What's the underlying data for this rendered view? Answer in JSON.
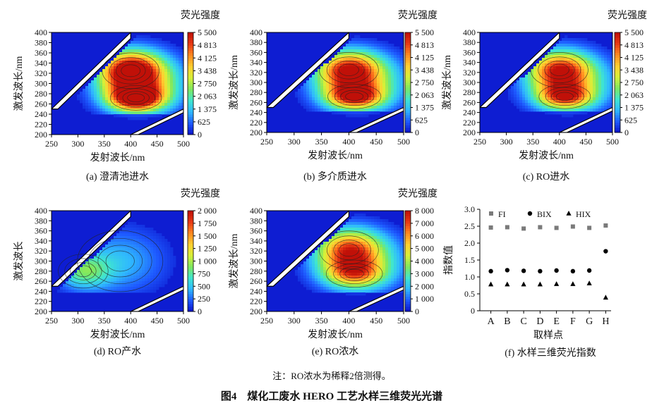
{
  "figure": {
    "title": "图4　煤化工废水 HERO 工艺水样三维荧光光谱",
    "note": "注：RO浓水为稀释2倍测得。"
  },
  "colors": {
    "colormap": [
      "#0a10c8",
      "#1e5aff",
      "#2fb8ff",
      "#3fe6d0",
      "#7ee860",
      "#d6f038",
      "#ffd030",
      "#ff8a20",
      "#e83a14",
      "#c01008"
    ]
  },
  "chart_data": [
    {
      "id": "a",
      "type": "heatmap",
      "caption": "(a) 澄清池进水",
      "xlabel": "发射波长/nm",
      "ylabel": "激发波长/nm",
      "colorbar_title": "荧光强度",
      "x_ticks": [
        "250",
        "300",
        "350",
        "400",
        "450",
        "500"
      ],
      "y_ticks": [
        "200",
        "220",
        "240",
        "260",
        "280",
        "300",
        "320",
        "340",
        "360",
        "380",
        "400"
      ],
      "colorbar_ticks": [
        "0",
        "625",
        "1 375",
        "2 063",
        "2 750",
        "3 438",
        "4 125",
        "4 813",
        "5 500"
      ],
      "xlim": [
        250,
        500
      ],
      "ylim": [
        200,
        400
      ],
      "zlim": [
        0,
        5500
      ],
      "peaks": [
        {
          "em": 400,
          "ex": 325,
          "intensity": 4900,
          "sigma_em": 40,
          "sigma_ex": 26
        },
        {
          "em": 410,
          "ex": 272,
          "intensity": 5100,
          "sigma_em": 36,
          "sigma_ex": 18
        },
        {
          "em": 420,
          "ex": 300,
          "intensity": 3000,
          "sigma_em": 55,
          "sigma_ex": 38
        }
      ]
    },
    {
      "id": "b",
      "type": "heatmap",
      "caption": "(b) 多介质进水",
      "xlabel": "发射波长/nm",
      "ylabel": "激发波长/nm",
      "colorbar_title": "荧光强度",
      "x_ticks": [
        "250",
        "300",
        "350",
        "400",
        "450",
        "500"
      ],
      "y_ticks": [
        "200",
        "220",
        "240",
        "260",
        "280",
        "300",
        "320",
        "340",
        "360",
        "380",
        "400"
      ],
      "colorbar_ticks": [
        "0",
        "625",
        "1 375",
        "2 063",
        "2 750",
        "3 438",
        "4 125",
        "4 813",
        "5 500"
      ],
      "xlim": [
        250,
        500
      ],
      "ylim": [
        200,
        400
      ],
      "zlim": [
        0,
        5500
      ],
      "peaks": [
        {
          "em": 400,
          "ex": 325,
          "intensity": 4100,
          "sigma_em": 40,
          "sigma_ex": 26
        },
        {
          "em": 410,
          "ex": 272,
          "intensity": 4200,
          "sigma_em": 36,
          "sigma_ex": 18
        },
        {
          "em": 420,
          "ex": 300,
          "intensity": 2600,
          "sigma_em": 55,
          "sigma_ex": 38
        }
      ]
    },
    {
      "id": "c",
      "type": "heatmap",
      "caption": "(c) RO进水",
      "xlabel": "发射波长/nm",
      "ylabel": "激发波长/nm",
      "colorbar_title": "荧光强度",
      "x_ticks": [
        "250",
        "300",
        "350",
        "400",
        "450",
        "500"
      ],
      "y_ticks": [
        "200",
        "220",
        "240",
        "260",
        "280",
        "300",
        "320",
        "340",
        "360",
        "380",
        "400"
      ],
      "colorbar_ticks": [
        "0",
        "625",
        "1 375",
        "2 063",
        "2 750",
        "3 438",
        "4 125",
        "4 813",
        "5 500"
      ],
      "xlim": [
        250,
        500
      ],
      "ylim": [
        200,
        400
      ],
      "zlim": [
        0,
        5500
      ],
      "peaks": [
        {
          "em": 400,
          "ex": 325,
          "intensity": 3900,
          "sigma_em": 40,
          "sigma_ex": 26
        },
        {
          "em": 410,
          "ex": 272,
          "intensity": 3700,
          "sigma_em": 36,
          "sigma_ex": 18
        },
        {
          "em": 420,
          "ex": 300,
          "intensity": 2500,
          "sigma_em": 55,
          "sigma_ex": 38
        }
      ]
    },
    {
      "id": "d",
      "type": "heatmap",
      "caption": "(d) RO产水",
      "xlabel": "发射波长/nm",
      "ylabel": "激发波长",
      "colorbar_title": "荧光强度",
      "x_ticks": [
        "250",
        "300",
        "350",
        "400",
        "450",
        "500"
      ],
      "y_ticks": [
        "200",
        "220",
        "240",
        "260",
        "280",
        "300",
        "320",
        "340",
        "360",
        "380",
        "400"
      ],
      "colorbar_ticks": [
        "0",
        "250",
        "500",
        "750",
        "1 000",
        "1 250",
        "1 500",
        "1 750",
        "2 000"
      ],
      "xlim": [
        250,
        500
      ],
      "ylim": [
        200,
        400
      ],
      "zlim": [
        0,
        2000
      ],
      "peaks": [
        {
          "em": 310,
          "ex": 280,
          "intensity": 700,
          "sigma_em": 35,
          "sigma_ex": 25
        },
        {
          "em": 380,
          "ex": 300,
          "intensity": 450,
          "sigma_em": 60,
          "sigma_ex": 45
        }
      ]
    },
    {
      "id": "e",
      "type": "heatmap",
      "caption": "(e) RO浓水",
      "xlabel": "发射波长/nm",
      "ylabel": "激发波长/nm",
      "colorbar_title": "荧光强度",
      "x_ticks": [
        "250",
        "300",
        "350",
        "400",
        "450",
        "500"
      ],
      "y_ticks": [
        "200",
        "220",
        "240",
        "260",
        "280",
        "300",
        "320",
        "340",
        "360",
        "380",
        "400"
      ],
      "colorbar_ticks": [
        "0",
        "1 000",
        "2 000",
        "3 000",
        "4 000",
        "5 000",
        "6 000",
        "7 000",
        "8 000"
      ],
      "xlim": [
        250,
        500
      ],
      "ylim": [
        200,
        400
      ],
      "zlim": [
        0,
        8000
      ],
      "peaks": [
        {
          "em": 400,
          "ex": 322,
          "intensity": 5200,
          "sigma_em": 40,
          "sigma_ex": 28
        },
        {
          "em": 410,
          "ex": 275,
          "intensity": 4100,
          "sigma_em": 38,
          "sigma_ex": 20
        },
        {
          "em": 420,
          "ex": 300,
          "intensity": 3200,
          "sigma_em": 55,
          "sigma_ex": 40
        }
      ]
    },
    {
      "id": "f",
      "type": "scatter",
      "caption": "(f) 水样三维荧光指数",
      "xlabel": "取样点",
      "ylabel": "指数值",
      "categories": [
        "A",
        "B",
        "C",
        "D",
        "E",
        "F",
        "G",
        "H"
      ],
      "y_ticks": [
        "0",
        "0.5",
        "1.0",
        "1.5",
        "2.0",
        "2.5",
        "3.0"
      ],
      "ylim": [
        0,
        3.0
      ],
      "series": [
        {
          "name": "FI",
          "marker": "square",
          "values": [
            2.46,
            2.47,
            2.43,
            2.47,
            2.45,
            2.49,
            2.45,
            2.52
          ]
        },
        {
          "name": "BIX",
          "marker": "circle",
          "values": [
            1.17,
            1.2,
            1.18,
            1.17,
            1.19,
            1.17,
            1.19,
            1.76
          ]
        },
        {
          "name": "HIX",
          "marker": "triangle",
          "values": [
            0.78,
            0.78,
            0.78,
            0.78,
            0.79,
            0.79,
            0.81,
            0.39
          ]
        }
      ]
    }
  ]
}
